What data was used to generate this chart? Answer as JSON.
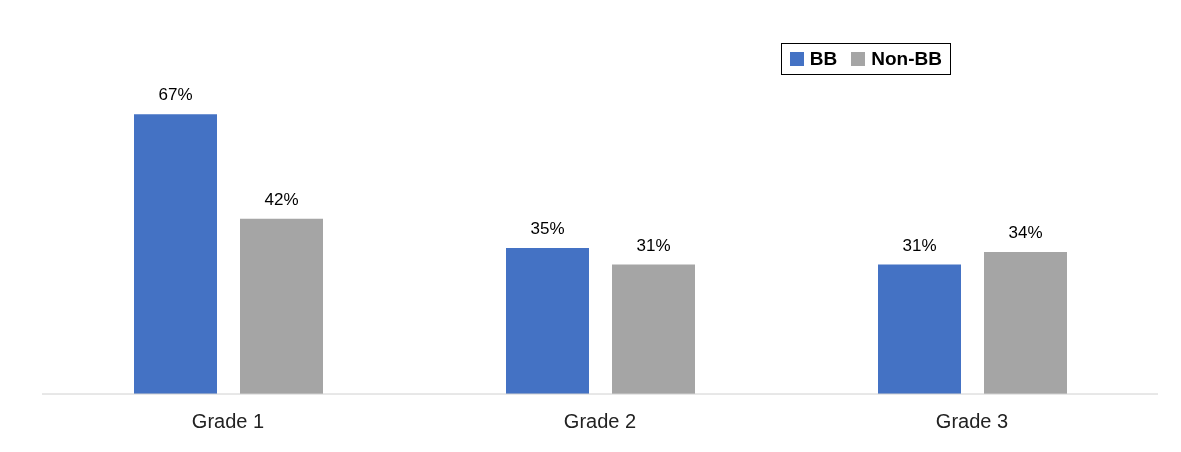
{
  "chart_data": {
    "type": "bar",
    "categories": [
      "Grade 1",
      "Grade 2",
      "Grade 3"
    ],
    "series": [
      {
        "name": "BB",
        "color": "#4472c4",
        "values": [
          67,
          35,
          31
        ],
        "value_labels": [
          "67%",
          "35%",
          "31%"
        ]
      },
      {
        "name": "Non-BB",
        "color": "#a5a5a5",
        "values": [
          42,
          31,
          34
        ],
        "value_labels": [
          "42%",
          "31%",
          "34%"
        ]
      }
    ],
    "legend": "top right",
    "grid": false
  }
}
